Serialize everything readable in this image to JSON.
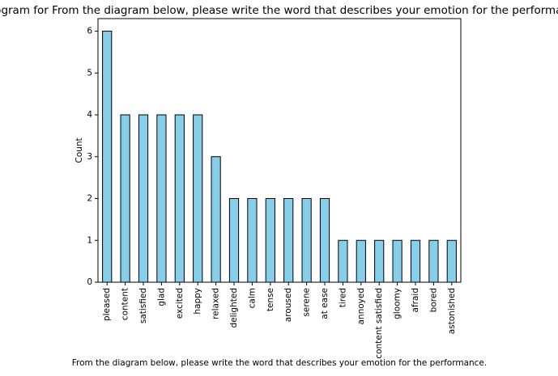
{
  "chart_data": {
    "type": "bar",
    "title": "Histogram for From the diagram below, please write the word that describes your emotion for the performance.",
    "xlabel": "From the diagram below, please write the word that describes your emotion for the performance.",
    "ylabel": "Count",
    "categories": [
      "pleased",
      "content",
      "satisfied",
      "glad",
      "excited",
      "happy",
      "relaxed",
      "delighted",
      "calm",
      "tense",
      "aroused",
      "serene",
      "at ease",
      "tired",
      "annoyed",
      "content satisfied",
      "gloomy",
      "afraid",
      "bored",
      "astonished"
    ],
    "values": [
      6,
      4,
      4,
      4,
      4,
      4,
      3,
      2,
      2,
      2,
      2,
      2,
      2,
      1,
      1,
      1,
      1,
      1,
      1,
      1
    ],
    "yticks": [
      "0",
      "1",
      "2",
      "3",
      "4",
      "5",
      "6"
    ],
    "ylim": [
      0,
      6.3
    ],
    "grid": false,
    "colors": {
      "bar_fill": "#87ceeb",
      "bar_edge": "#000000"
    }
  }
}
